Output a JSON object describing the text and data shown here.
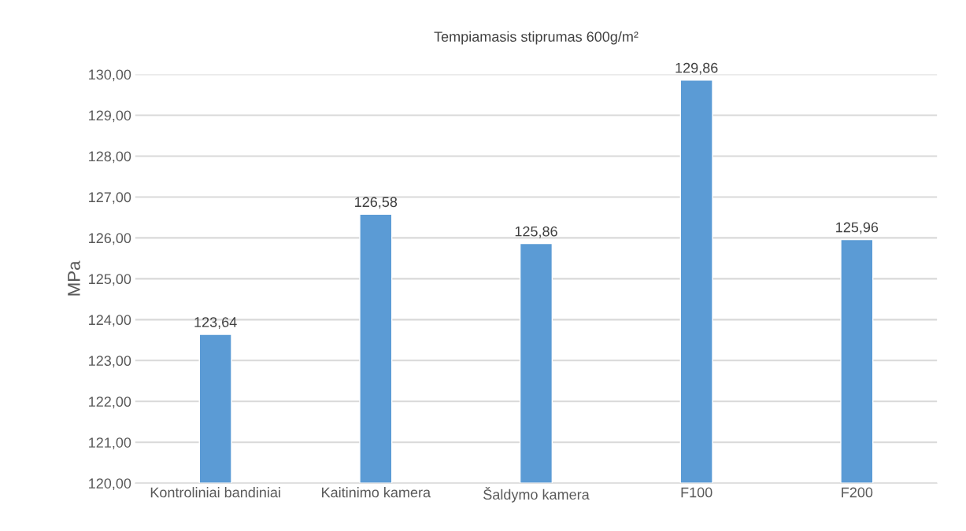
{
  "chart_data": {
    "type": "bar",
    "title": "Tempiamasis stiprumas 600g/m²",
    "ylabel": "MPa",
    "categories": [
      "Kontroliniai bandiniai",
      "Kaitinimo kamera",
      "Šaldymo kamera",
      "F100",
      "F200"
    ],
    "values": [
      123.64,
      126.58,
      125.86,
      129.86,
      125.96
    ],
    "value_labels": [
      "123,64",
      "126,58",
      "125,86",
      "129,86",
      "125,96"
    ],
    "color": "#5b9bd5",
    "ylim": [
      120,
      130
    ],
    "yticks": [
      {
        "value": 120,
        "label": "120,00"
      },
      {
        "value": 121,
        "label": "121,00"
      },
      {
        "value": 122,
        "label": "122,00"
      },
      {
        "value": 123,
        "label": "123,00"
      },
      {
        "value": 124,
        "label": "124,00"
      },
      {
        "value": 125,
        "label": "125,00"
      },
      {
        "value": 126,
        "label": "126,00"
      },
      {
        "value": 127,
        "label": "127,00"
      },
      {
        "value": 128,
        "label": "128,00"
      },
      {
        "value": 129,
        "label": "129,00"
      },
      {
        "value": 130,
        "label": "130,00"
      }
    ],
    "grid": "y"
  }
}
